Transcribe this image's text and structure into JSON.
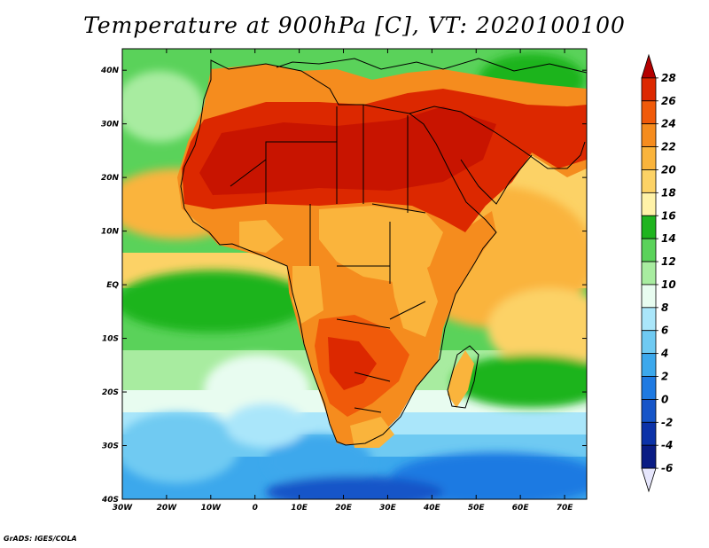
{
  "title": "Temperature at 900hPa [C], VT: 2020100100",
  "footer": "GrADS: IGES/COLA",
  "map": {
    "lat_labels": [
      "40N",
      "30N",
      "20N",
      "10N",
      "EQ",
      "10S",
      "20S",
      "30S",
      "40S"
    ],
    "lon_labels": [
      "30W",
      "20W",
      "10W",
      "0",
      "10E",
      "20E",
      "30E",
      "40E",
      "50E",
      "60E",
      "70E"
    ],
    "lon_range": [
      -30,
      75
    ],
    "lat_range": [
      -40,
      44
    ]
  },
  "colorbar": {
    "labels": [
      "28",
      "26",
      "24",
      "22",
      "20",
      "18",
      "16",
      "14",
      "12",
      "10",
      "8",
      "6",
      "4",
      "2",
      "0",
      "-2",
      "-4",
      "-6"
    ],
    "colors": [
      "#b40000",
      "#dc2800",
      "#f05a0a",
      "#f58c1e",
      "#fab43c",
      "#fcd266",
      "#fff2a8",
      "#1fb41f",
      "#5ad25a",
      "#a8eca0",
      "#e8fcf0",
      "#aae6fa",
      "#6fcaf2",
      "#3ca8ec",
      "#1f7ae2",
      "#1655c8",
      "#0c32a8",
      "#0a1c84",
      "#e6e6fc"
    ]
  }
}
